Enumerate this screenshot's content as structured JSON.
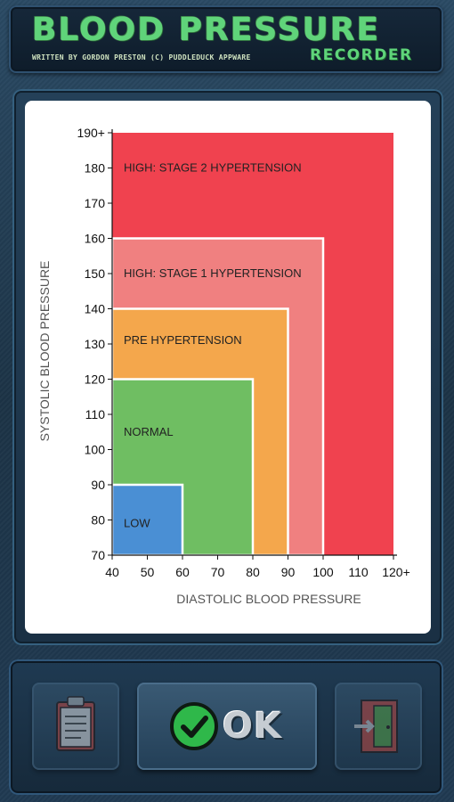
{
  "header": {
    "title": "BLOOD PRESSURE",
    "byline": "WRITTEN BY GORDON PRESTON   (C) PUDDLEDUCK APPWARE",
    "subtitle": "RECORDER"
  },
  "chart_data": {
    "type": "area",
    "xlabel": "DIASTOLIC BLOOD PRESSURE",
    "ylabel": "SYSTOLIC BLOOD PRESSURE",
    "xlim": [
      40,
      120
    ],
    "ylim": [
      70,
      190
    ],
    "x_ticks": [
      "40",
      "50",
      "60",
      "70",
      "80",
      "90",
      "100",
      "110",
      "120+"
    ],
    "y_ticks": [
      "70",
      "80",
      "90",
      "100",
      "110",
      "120",
      "130",
      "140",
      "150",
      "160",
      "170",
      "180",
      "190+"
    ],
    "zones": [
      {
        "name": "HIGH: STAGE 2 HYPERTENSION",
        "x_max": 120,
        "y_max": 190,
        "color": "#f0424f",
        "label_y": 180
      },
      {
        "name": "HIGH: STAGE 1 HYPERTENSION",
        "x_max": 100,
        "y_max": 160,
        "color": "#f08080",
        "label_y": 150
      },
      {
        "name": "PRE HYPERTENSION",
        "x_max": 90,
        "y_max": 140,
        "color": "#f4a74c",
        "label_y": 131
      },
      {
        "name": "NORMAL",
        "x_max": 80,
        "y_max": 120,
        "color": "#6fbe62",
        "label_y": 105
      },
      {
        "name": "LOW",
        "x_max": 60,
        "y_max": 90,
        "color": "#4a8fd4",
        "label_y": 79
      }
    ]
  },
  "footer": {
    "records_icon": "clipboard-icon",
    "ok_label": "OK",
    "ok_icon": "checkmark-icon",
    "exit_icon": "exit-door-icon",
    "accent": "#5fd47a"
  }
}
